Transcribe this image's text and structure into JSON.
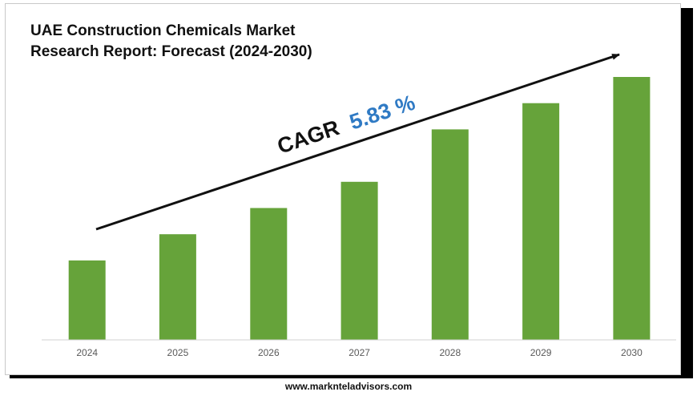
{
  "chart_data": {
    "type": "bar",
    "title": "UAE Construction Chemicals Market Research Report: Forecast (2024-2030)",
    "categories": [
      "2024",
      "2025",
      "2026",
      "2027",
      "2028",
      "2029",
      "2030"
    ],
    "values": [
      1.0,
      1.33,
      1.66,
      1.99,
      2.65,
      2.98,
      3.31
    ],
    "ylim": [
      0,
      3.31
    ],
    "grid": false,
    "legend": "none",
    "bar_color": "#66a33a",
    "annotation": {
      "cagr_label": "CAGR",
      "cagr_value": "5.83 %",
      "label_color": "#111111",
      "value_color": "#2f7ac4"
    }
  },
  "footer": {
    "website": "www.marknteladvisors.com"
  }
}
